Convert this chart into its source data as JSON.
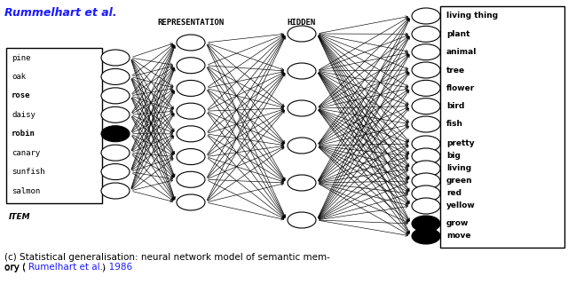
{
  "title": "Rummelhart et al.",
  "title_color": "#1a1aff",
  "bg_color": "#ffffff",
  "item_labels": [
    "pine",
    "oak",
    "rose",
    "daisy",
    "robin",
    "canary",
    "sunfish",
    "salmon"
  ],
  "item_bold": [
    "rose",
    "robin"
  ],
  "item_filled": [
    "robin"
  ],
  "output_labels_top": [
    "living thing",
    "plant",
    "animal",
    "tree",
    "flower",
    "bird",
    "fish"
  ],
  "output_labels_mid": [
    "pretty",
    "big",
    "living",
    "green",
    "red",
    "yellow"
  ],
  "output_labels_bot": [
    "grow",
    "move"
  ],
  "output_filled": [
    "grow",
    "move"
  ],
  "repr_label": "REPRESENTATION",
  "hidden_label": "HIDDEN",
  "item_label": "ITEM",
  "caption_plain": "(c) Statistical generalisation: neural network model of semantic mem-\nory (",
  "caption_link": "Rumelhart et al., 1986",
  "caption_end": ")",
  "n_input": 8,
  "n_repr": 8,
  "n_hidden": 6
}
